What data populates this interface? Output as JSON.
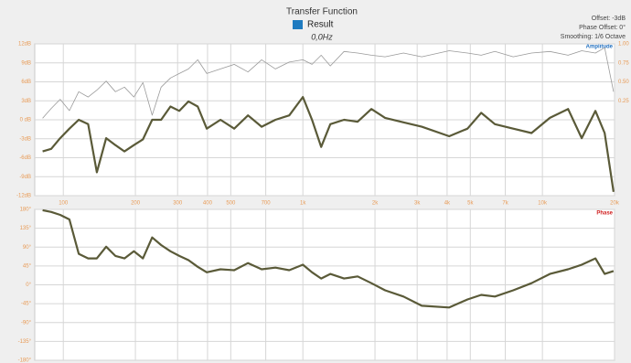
{
  "chart_data": [
    {
      "type": "line",
      "title": "Transfer Function",
      "subtitle": "0,0Hz",
      "annotations": [
        "Offset: -3dB",
        "Phase Offset: 0°",
        "Smoothing: 1/6 Octave"
      ],
      "panel_label": "Amplitude",
      "panel_label_color": "#1f6fc0",
      "legend_color": "#1f7bc0",
      "log_x": true,
      "grid": true,
      "xlim": [
        76,
        20000
      ],
      "xticks": [
        100,
        200,
        300,
        400,
        500,
        700,
        {
          "value": 1000,
          "label": "1k"
        },
        {
          "value": 2000,
          "label": "2k"
        },
        {
          "value": 3000,
          "label": "3k"
        },
        {
          "value": 4000,
          "label": "4k"
        },
        {
          "value": 5000,
          "label": "5k"
        },
        {
          "value": 7000,
          "label": "7k"
        },
        {
          "value": 10000,
          "label": "10k"
        },
        {
          "value": 20000,
          "label": "20k"
        }
      ],
      "ylim": [
        -12,
        12
      ],
      "yticks": [
        {
          "value": -12,
          "label": "-12dB"
        },
        {
          "value": -9,
          "label": "-9dB"
        },
        {
          "value": -6,
          "label": "-6dB"
        },
        {
          "value": -3,
          "label": "-3dB"
        },
        {
          "value": 0,
          "label": "0 dB"
        },
        {
          "value": 3,
          "label": "3dB"
        },
        {
          "value": 6,
          "label": "6dB"
        },
        {
          "value": 9,
          "label": "9dB"
        },
        {
          "value": 12,
          "label": "12dB"
        }
      ],
      "y2lim": [
        -1,
        1
      ],
      "y2ticks": [
        0.25,
        {
          "value": 0.5,
          "label": "0.50"
        },
        0.75,
        {
          "value": 1,
          "label": "1.00"
        }
      ],
      "x": [
        82,
        89,
        97,
        106,
        116,
        127,
        138,
        151,
        165,
        180,
        197,
        215,
        235,
        256,
        280,
        305,
        333,
        364,
        397,
        453,
        517,
        590,
        673,
        768,
        877,
        1000,
        1092,
        1192,
        1302,
        1485,
        1694,
        1932,
        2205,
        2630,
        3135,
        4080,
        4865,
        5550,
        6335,
        7550,
        9000,
        10740,
        12800,
        14590,
        16640,
        18190,
        19800
      ],
      "series": [
        {
          "color": "#9a9a9a",
          "axis": "y2",
          "values": [
            0.02,
            0.15,
            0.27,
            0.12,
            0.37,
            0.3,
            0.39,
            0.51,
            0.37,
            0.43,
            0.3,
            0.49,
            0.06,
            0.43,
            0.55,
            0.61,
            0.67,
            0.79,
            0.61,
            0.67,
            0.73,
            0.63,
            0.79,
            0.67,
            0.76,
            0.79,
            0.73,
            0.85,
            0.71,
            0.9,
            0.88,
            0.85,
            0.83,
            0.88,
            0.83,
            0.91,
            0.88,
            0.85,
            0.9,
            0.83,
            0.88,
            0.9,
            0.85,
            0.91,
            0.88,
            0.95,
            0.37
          ]
        },
        {
          "name": "Result",
          "color": "#5a5a38",
          "values": [
            -5,
            -4.6,
            -2.9,
            -1.4,
            0,
            -0.7,
            -8.3,
            -2.9,
            -4,
            -5,
            -4,
            -3.1,
            0,
            0,
            2.1,
            1.4,
            2.9,
            2.1,
            -1.4,
            0,
            -1.4,
            0.7,
            -1.1,
            0,
            0.7,
            3.6,
            0,
            -4.3,
            -0.7,
            0,
            -0.3,
            1.7,
            0.3,
            -0.4,
            -1.1,
            -2.6,
            -1.4,
            1.1,
            -0.7,
            -1.4,
            -2.1,
            0.3,
            1.7,
            -2.9,
            1.4,
            -2.1,
            -11.4
          ]
        }
      ]
    },
    {
      "type": "line",
      "panel_label": "Phase",
      "panel_label_color": "#d02020",
      "log_x": true,
      "grid": true,
      "xlim": [
        76,
        20000
      ],
      "ylim": [
        -180,
        180
      ],
      "yticks": [
        {
          "value": -180,
          "label": "-180°"
        },
        {
          "value": -135,
          "label": "-135°"
        },
        {
          "value": -90,
          "label": "-90°"
        },
        {
          "value": -45,
          "label": "-45°"
        },
        {
          "value": 0,
          "label": "0°"
        },
        {
          "value": 45,
          "label": "45°"
        },
        {
          "value": 90,
          "label": "90°"
        },
        {
          "value": 135,
          "label": "135°"
        },
        {
          "value": 180,
          "label": "180°"
        }
      ],
      "x": [
        82,
        89,
        97,
        106,
        116,
        127,
        138,
        151,
        165,
        180,
        197,
        215,
        235,
        256,
        280,
        305,
        333,
        364,
        397,
        453,
        517,
        590,
        673,
        768,
        877,
        1000,
        1092,
        1192,
        1302,
        1485,
        1694,
        1932,
        2205,
        2630,
        3135,
        4080,
        4865,
        5550,
        6335,
        7550,
        9000,
        10740,
        12800,
        14590,
        16640,
        18190,
        19800
      ],
      "series": [
        {
          "color": "#5a5a38",
          "values": [
            178,
            174,
            167,
            156,
            74,
            63,
            63,
            91,
            69,
            63,
            80,
            63,
            113,
            95,
            80,
            69,
            59,
            43,
            30,
            37,
            35,
            52,
            37,
            41,
            35,
            48,
            30,
            15,
            26,
            15,
            20,
            4,
            -13,
            -28,
            -50,
            -54,
            -35,
            -24,
            -28,
            -13,
            4,
            26,
            37,
            48,
            63,
            26,
            33
          ]
        }
      ]
    }
  ]
}
